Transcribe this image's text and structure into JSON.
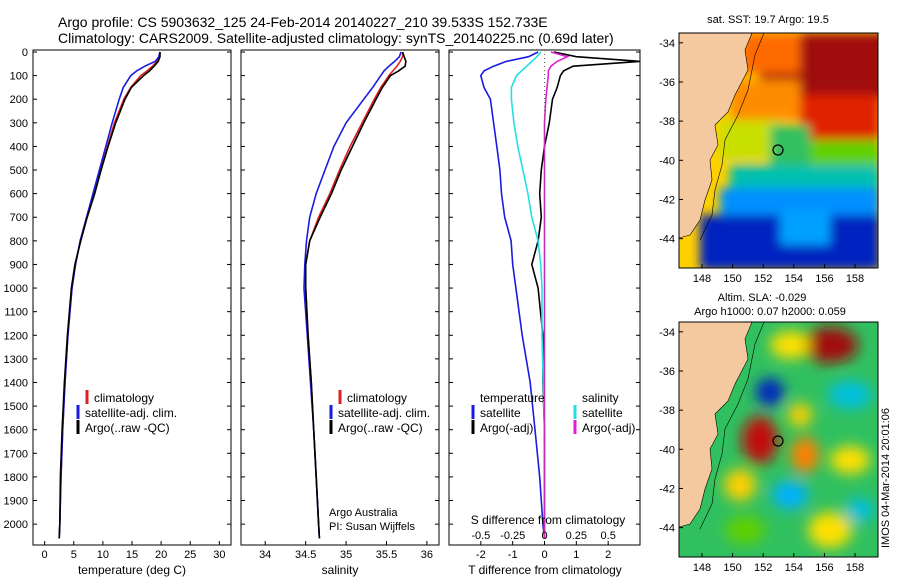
{
  "header": {
    "line1": "Argo profile: CS 5903632_125 24-Feb-2014 20140227_210 39.533S 152.733E",
    "line2": "Climatology: CARS2009. Satellite-adjusted climatology: synTS_20140225.nc (0.69d later)"
  },
  "colors": {
    "clim": "#e02020",
    "sat": "#1a1ae0",
    "argo": "#000000",
    "sal_sat": "#22e0e6",
    "sal_argo": "#e020d0"
  },
  "yaxis_ticks": [
    "0",
    "100",
    "200",
    "300",
    "400",
    "500",
    "600",
    "700",
    "800",
    "900",
    "1000",
    "1100",
    "1200",
    "1300",
    "1400",
    "1500",
    "1600",
    "1700",
    "1800",
    "1900",
    "2000"
  ],
  "chart_data": [
    {
      "type": "line",
      "name": "temperature",
      "xlabel": "temperature (deg C)",
      "xlim": [
        -2,
        32
      ],
      "ylim": [
        0,
        2080
      ],
      "y_reversed": true,
      "xticks": [
        "0",
        "5",
        "10",
        "15",
        "20",
        "25",
        "30"
      ],
      "legend": [
        "climatology",
        "satellite-adj. clim.",
        "Argo(..raw -QC)"
      ],
      "depth": [
        0,
        20,
        40,
        60,
        80,
        100,
        150,
        200,
        300,
        400,
        500,
        600,
        700,
        800,
        900,
        1000,
        1200,
        1400,
        1600,
        1800,
        2000,
        2060
      ],
      "series": [
        {
          "name": "climatology",
          "values": [
            19.8,
            19.7,
            19.3,
            18.5,
            17.6,
            16.5,
            14.8,
            13.6,
            12.0,
            10.8,
            9.6,
            8.4,
            7.2,
            6.1,
            5.3,
            4.7,
            4.0,
            3.5,
            3.1,
            2.8,
            2.6,
            2.5
          ]
        },
        {
          "name": "satellite-adj. clim.",
          "values": [
            19.8,
            19.6,
            19.0,
            17.2,
            15.8,
            14.8,
            13.5,
            12.8,
            11.6,
            10.5,
            9.4,
            8.3,
            7.2,
            6.1,
            5.3,
            4.7,
            4.0,
            3.5,
            3.1,
            2.8,
            2.6,
            2.5
          ]
        },
        {
          "name": "Argo",
          "values": [
            19.8,
            19.8,
            19.5,
            18.8,
            18.0,
            17.0,
            14.9,
            13.8,
            12.2,
            10.9,
            9.7,
            8.6,
            7.3,
            6.2,
            5.2,
            4.6,
            3.9,
            3.4,
            3.0,
            2.7,
            2.6,
            2.5
          ]
        }
      ]
    },
    {
      "type": "line",
      "name": "salinity",
      "xlabel": "salinity",
      "xlim": [
        33.7,
        36.15
      ],
      "ylim": [
        0,
        2080
      ],
      "y_reversed": true,
      "xticks": [
        "34",
        "34.5",
        "35",
        "35.5",
        "36"
      ],
      "legend": [
        "climatology",
        "satellite-adj. clim.",
        "Argo(..raw -QC)"
      ],
      "depth": [
        0,
        20,
        40,
        60,
        80,
        100,
        150,
        200,
        300,
        400,
        500,
        600,
        700,
        800,
        900,
        1000,
        1200,
        1400,
        1600,
        1800,
        2000,
        2060
      ],
      "series": [
        {
          "name": "climatology",
          "values": [
            35.7,
            35.7,
            35.67,
            35.63,
            35.58,
            35.53,
            35.43,
            35.35,
            35.2,
            35.05,
            34.92,
            34.8,
            34.66,
            34.55,
            34.5,
            34.5,
            34.53,
            34.57,
            34.6,
            34.63,
            34.66,
            34.67
          ]
        },
        {
          "name": "satellite-adj. clim.",
          "values": [
            35.68,
            35.66,
            35.6,
            35.53,
            35.47,
            35.43,
            35.33,
            35.22,
            35.0,
            34.85,
            34.74,
            34.63,
            34.55,
            34.51,
            34.49,
            34.48,
            34.52,
            34.56,
            34.6,
            34.63,
            34.66,
            34.67
          ]
        },
        {
          "name": "Argo",
          "values": [
            35.7,
            35.72,
            35.74,
            35.73,
            35.65,
            35.55,
            35.45,
            35.37,
            35.22,
            35.08,
            34.94,
            34.82,
            34.68,
            34.55,
            34.5,
            34.5,
            34.53,
            34.57,
            34.6,
            34.63,
            34.66,
            34.67
          ]
        }
      ],
      "annotations": [
        "Argo Australia",
        "PI: Susan Wijffels"
      ]
    },
    {
      "type": "line",
      "name": "difference",
      "xlabel": "T difference from climatology",
      "xlabel_top": "S difference from climatology",
      "xlim": [
        -3,
        3
      ],
      "ylim": [
        0,
        2080
      ],
      "y_reversed": true,
      "xticks": [
        "-2",
        "-1",
        "0",
        "1",
        "2"
      ],
      "xticks_top": [
        "-0.5",
        "-0.25",
        "0",
        "0.25",
        "0.5"
      ],
      "legend": [
        "temperature",
        "satellite",
        "Argo(-adj)",
        "salinity",
        "satellite",
        "Argo(-adj)"
      ],
      "depth": [
        0,
        20,
        40,
        60,
        80,
        100,
        150,
        200,
        300,
        400,
        500,
        600,
        700,
        800,
        900,
        1000,
        1200,
        1400,
        1600,
        1800,
        2000,
        2060
      ],
      "series": [
        {
          "name": "temperature satellite",
          "values": [
            -0.2,
            -0.5,
            -1.2,
            -1.6,
            -1.9,
            -2.0,
            -1.9,
            -1.7,
            -1.6,
            -1.5,
            -1.4,
            -1.35,
            -1.25,
            -1.05,
            -1.0,
            -0.9,
            -0.7,
            -0.45,
            -0.3,
            -0.15,
            -0.05,
            0.0
          ]
        },
        {
          "name": "temperature Argo(-adj)",
          "values": [
            0.3,
            1.0,
            3.0,
            0.9,
            0.6,
            0.5,
            0.4,
            0.25,
            0.15,
            0.0,
            -0.1,
            -0.15,
            -0.1,
            -0.2,
            -0.4,
            -0.2,
            -0.05,
            -0.05,
            0.0,
            0.0,
            0.0,
            0.0
          ]
        },
        {
          "name": "salinity satellite",
          "values": [
            -0.03,
            -0.06,
            -0.1,
            -0.14,
            -0.18,
            -0.22,
            -0.26,
            -0.26,
            -0.24,
            -0.21,
            -0.17,
            -0.13,
            -0.1,
            -0.05,
            -0.03,
            -0.02,
            -0.02,
            -0.01,
            0.0,
            0.0,
            0.0,
            0.0
          ]
        },
        {
          "name": "salinity Argo(-adj)",
          "values": [
            0.05,
            0.18,
            0.1,
            0.05,
            0.03,
            0.03,
            0.02,
            0.01,
            0.0,
            0.0,
            0.0,
            0.0,
            0.0,
            0.0,
            0.0,
            0.0,
            0.0,
            0.0,
            0.0,
            0.0,
            0.0,
            0.0
          ]
        }
      ]
    },
    {
      "type": "heatmap",
      "name": "sat-sst-map",
      "title": "sat. SST: 19.7  Argo: 19.5",
      "xticks": [
        "148",
        "150",
        "152",
        "154",
        "156",
        "158"
      ],
      "yticks": [
        "-34",
        "-36",
        "-38",
        "-40",
        "-42",
        "-44"
      ],
      "xlim": [
        146.5,
        159.5
      ],
      "ylim": [
        -45.5,
        -33.5
      ],
      "marker": {
        "lon": 152.733,
        "lat": -39.533
      }
    },
    {
      "type": "heatmap",
      "name": "altimetry-map",
      "title1": "Altim. SLA: -0.029",
      "title2": "Argo h1000: 0.07  h2000: 0.059",
      "xticks": [
        "148",
        "150",
        "152",
        "154",
        "156",
        "158"
      ],
      "yticks": [
        "-34",
        "-36",
        "-38",
        "-40",
        "-42",
        "-44"
      ],
      "xlim": [
        146.5,
        159.5
      ],
      "ylim": [
        -45.5,
        -33.5
      ],
      "marker": {
        "lon": 152.733,
        "lat": -39.533
      }
    }
  ],
  "credit": "IMOS 04-Mar-2014 20:01:06"
}
